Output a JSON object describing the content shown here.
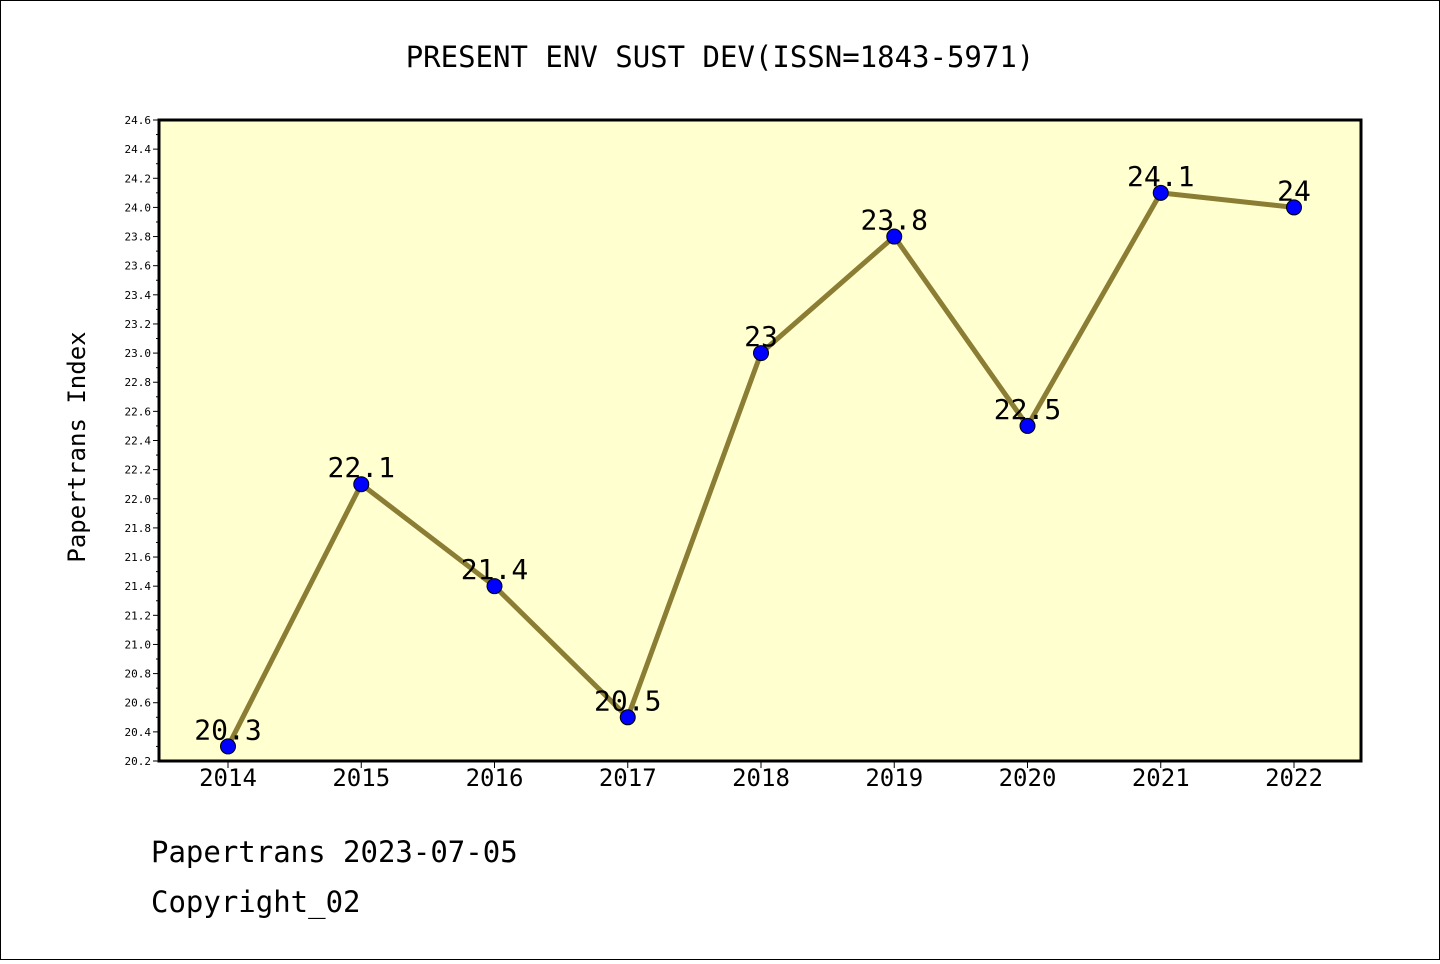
{
  "chart_data": {
    "type": "line",
    "title": "PRESENT ENV SUST DEV(ISSN=1843-5971)",
    "xlabel": "",
    "ylabel": "Papertrans Index",
    "categories": [
      "2014",
      "2015",
      "2016",
      "2017",
      "2018",
      "2019",
      "2020",
      "2021",
      "2022"
    ],
    "series": [
      {
        "values": [
          20.3,
          22.1,
          21.4,
          20.5,
          23,
          23.8,
          22.5,
          24.1,
          24
        ]
      }
    ],
    "data_labels": [
      "20.3",
      "22.1",
      "21.4",
      "20.5",
      "23",
      "23.8",
      "22.5",
      "24.1",
      "24"
    ],
    "ylim": [
      20.2,
      24.6
    ],
    "yticks": [
      "20.2",
      "20.4",
      "20.6",
      "20.8",
      "21.0",
      "21.2",
      "21.4",
      "21.6",
      "21.8",
      "22.0",
      "22.2",
      "22.4",
      "22.6",
      "22.8",
      "23.0",
      "23.2",
      "23.4",
      "23.6",
      "23.8",
      "24.0",
      "24.2",
      "24.4",
      "24.6"
    ],
    "grid": false,
    "colors": {
      "plot_background": "#ffffd0",
      "line": "#8b7d33",
      "marker": "#0000ff"
    }
  },
  "footer": {
    "line1": "Papertrans 2023-07-05",
    "line2": "Copyright_02"
  }
}
